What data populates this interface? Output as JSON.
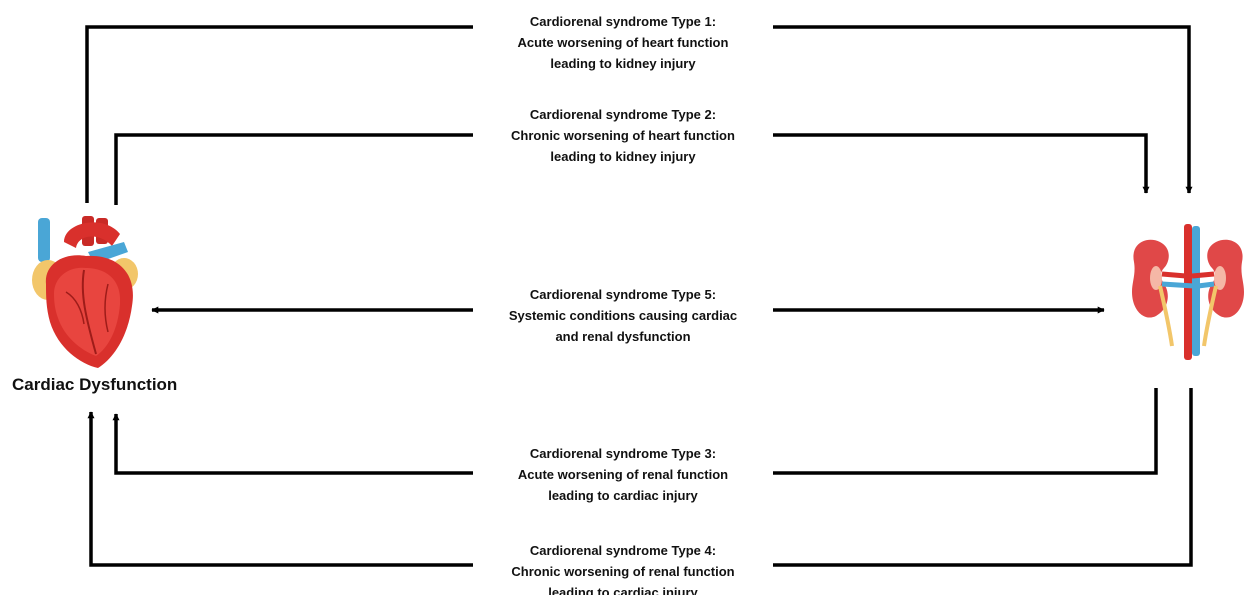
{
  "heart_label": "Cardiac Dysfunction",
  "syndromes": [
    {
      "id": "type1",
      "lines": [
        "Cardiorenal syndrome Type 1:",
        "Acute worsening of heart function",
        "leading to kidney injury"
      ]
    },
    {
      "id": "type2",
      "lines": [
        "Cardiorenal syndrome Type 2:",
        "Chronic worsening of heart function",
        "leading to kidney injury"
      ]
    },
    {
      "id": "type5",
      "lines": [
        "Cardiorenal syndrome Type 5:",
        "Systemic conditions causing cardiac",
        "and renal dysfunction"
      ]
    },
    {
      "id": "type3",
      "lines": [
        "Cardiorenal syndrome Type 3:",
        "Acute worsening of renal function",
        "leading to cardiac injury"
      ]
    },
    {
      "id": "type4",
      "lines": [
        "Cardiorenal syndrome Type 4:",
        "Chronic worsening of renal function",
        "leading to cardiac injury"
      ]
    }
  ],
  "icons": {
    "heart": "heart-icon",
    "kidney": "kidneys-icon"
  },
  "colors": {
    "line": "#000000",
    "heart_red": "#d9302c",
    "vessel_blue": "#4aa6d6",
    "kidney_red": "#e04848"
  }
}
